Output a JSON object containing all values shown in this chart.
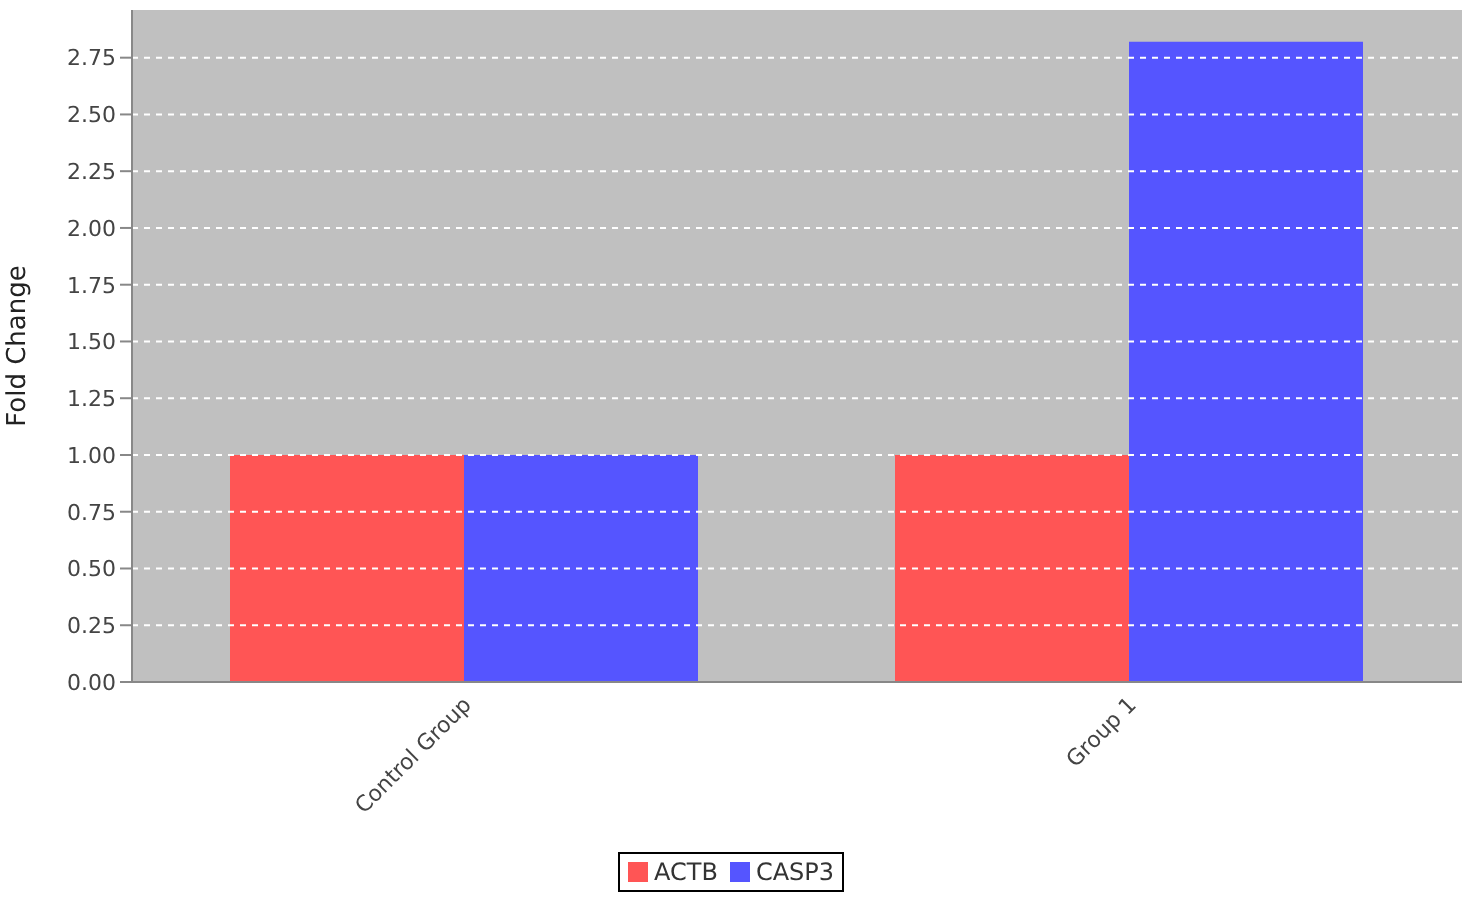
{
  "chart_data": {
    "type": "bar",
    "ylabel": "Fold Change",
    "categories": [
      "Control Group",
      "Group 1"
    ],
    "series": [
      {
        "name": "ACTB",
        "color": "#ff5555",
        "values": [
          1.0,
          1.0
        ]
      },
      {
        "name": "CASP3",
        "color": "#5555ff",
        "values": [
          1.0,
          2.82
        ]
      }
    ],
    "ylim": [
      0,
      2.96
    ],
    "yticks": [
      {
        "value": 0,
        "label": "0.00"
      },
      {
        "value": 0.25,
        "label": "0.25"
      },
      {
        "value": 0.5,
        "label": "0.50"
      },
      {
        "value": 0.75,
        "label": "0.75"
      },
      {
        "value": 1,
        "label": "1.00"
      },
      {
        "value": 1.25,
        "label": "1.25"
      },
      {
        "value": 1.5,
        "label": "1.50"
      },
      {
        "value": 1.75,
        "label": "1.75"
      },
      {
        "value": 2,
        "label": "2.00"
      },
      {
        "value": 2.25,
        "label": "2.25"
      },
      {
        "value": 2.5,
        "label": "2.50"
      },
      {
        "value": 2.75,
        "label": "2.75"
      }
    ],
    "grid": "y",
    "legend": "bottom"
  }
}
